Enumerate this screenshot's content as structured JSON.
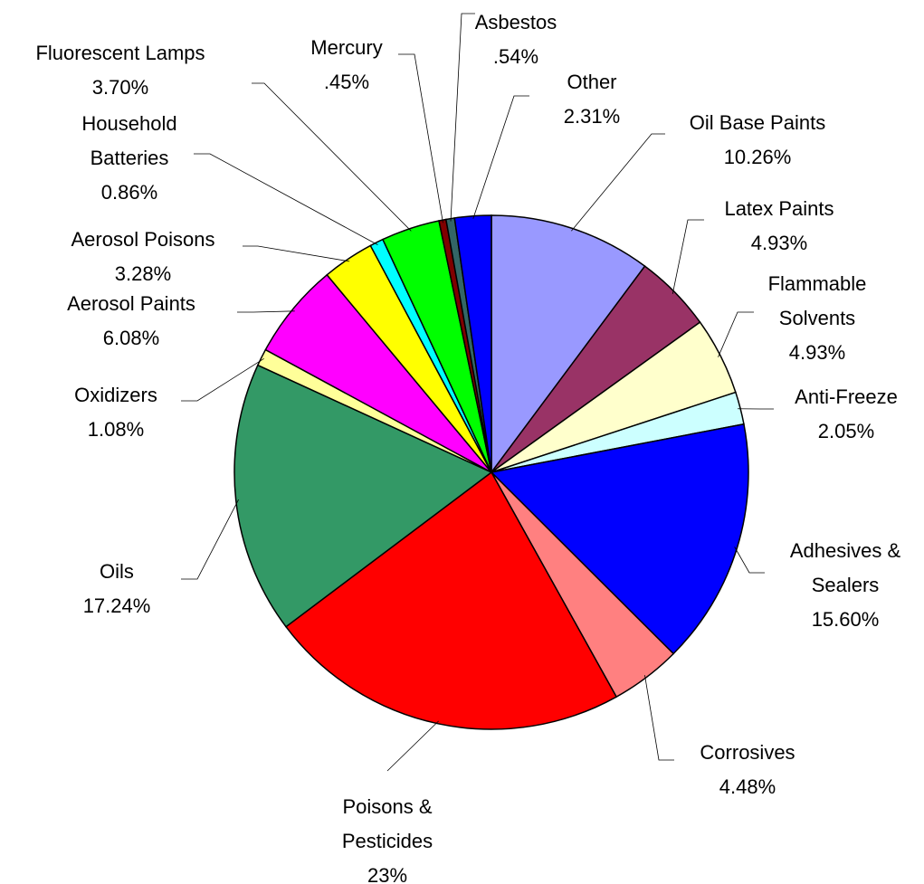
{
  "chart_data": {
    "type": "pie",
    "categories": [
      "Oil Base Paints",
      "Latex Paints",
      "Flammable Solvents",
      "Anti-Freeze",
      "Adhesives & Sealers",
      "Corrosives",
      "Poisons & Pesticides",
      "Oils",
      "Oxidizers",
      "Aerosol Paints",
      "Aerosol Poisons",
      "Household Batteries",
      "Fluorescent Lamps",
      "Mercury",
      "Asbestos",
      "Other"
    ],
    "values": [
      10.26,
      4.93,
      4.93,
      2.05,
      15.6,
      4.48,
      23,
      17.24,
      1.08,
      6.08,
      3.28,
      0.86,
      3.7,
      0.45,
      0.54,
      2.31
    ],
    "value_labels": [
      "10.26%",
      "4.93%",
      "4.93%",
      "2.05%",
      "15.60%",
      "4.48%",
      "23%",
      "17.24%",
      "1.08%",
      "6.08%",
      "3.28%",
      "0.86%",
      "3.70%",
      ".45%",
      ".54%",
      "2.31%"
    ],
    "colors": [
      "#9999ff",
      "#993366",
      "#ffffcc",
      "#ccffff",
      "#0000ff",
      "#ff8080",
      "#ff0000",
      "#339966",
      "#ffff99",
      "#ff00ff",
      "#ffff00",
      "#00ffff",
      "#00ff00",
      "#800000",
      "#336666",
      "#0000ff"
    ]
  }
}
